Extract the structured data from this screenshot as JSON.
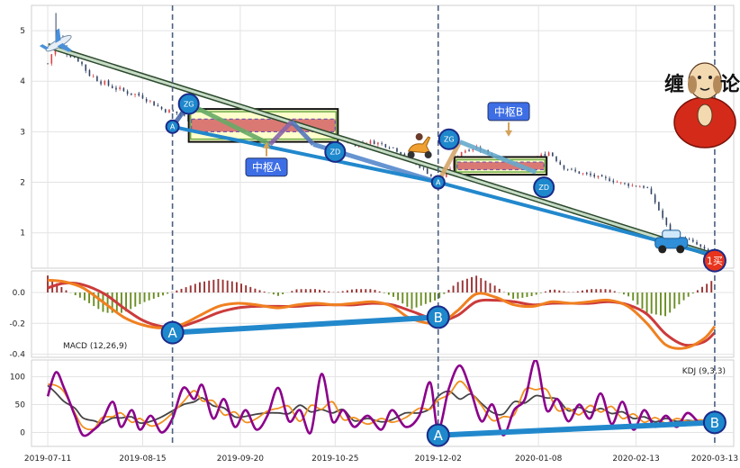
{
  "chart_data": [
    {
      "type": "candlestick",
      "panel": "price",
      "ylim": [
        0.3,
        5.5
      ],
      "yticks": [
        1,
        2,
        3,
        4,
        5
      ],
      "xlim": [
        "2019-07-05",
        "2020-03-20"
      ],
      "xticks": [
        "2019-07-11",
        "2019-08-15",
        "2019-09-20",
        "2019-10-25",
        "2019-12-02",
        "2020-01-08",
        "2020-02-13",
        "2020-03-13"
      ],
      "grid": true,
      "close_path": [
        [
          "2019-07-11",
          4.35
        ],
        [
          "2019-07-15",
          4.9
        ],
        [
          "2019-07-17",
          4.6
        ],
        [
          "2019-07-22",
          4.45
        ],
        [
          "2019-07-26",
          4.15
        ],
        [
          "2019-08-01",
          3.95
        ],
        [
          "2019-08-08",
          3.8
        ],
        [
          "2019-08-15",
          3.7
        ],
        [
          "2019-08-22",
          3.45
        ],
        [
          "2019-08-29",
          3.35
        ],
        [
          "2019-09-02",
          3.2
        ],
        [
          "2019-09-06",
          3.3
        ],
        [
          "2019-09-12",
          3.15
        ],
        [
          "2019-09-19",
          3.1
        ],
        [
          "2019-09-26",
          3.05
        ],
        [
          "2019-10-04",
          3.0
        ],
        [
          "2019-10-11",
          3.1
        ],
        [
          "2019-10-18",
          3.0
        ],
        [
          "2019-10-25",
          2.9
        ],
        [
          "2019-11-01",
          2.75
        ],
        [
          "2019-11-08",
          2.8
        ],
        [
          "2019-11-15",
          2.7
        ],
        [
          "2019-11-22",
          2.45
        ],
        [
          "2019-11-29",
          2.15
        ],
        [
          "2019-12-02",
          2.0
        ],
        [
          "2019-12-06",
          2.25
        ],
        [
          "2019-12-10",
          2.6
        ],
        [
          "2019-12-16",
          2.7
        ],
        [
          "2019-12-23",
          2.5
        ],
        [
          "2019-12-30",
          2.35
        ],
        [
          "2020-01-03",
          2.25
        ],
        [
          "2020-01-08",
          2.5
        ],
        [
          "2020-01-12",
          2.6
        ],
        [
          "2020-01-17",
          2.3
        ],
        [
          "2020-01-22",
          2.2
        ],
        [
          "2020-02-03",
          2.05
        ],
        [
          "2020-02-10",
          1.95
        ],
        [
          "2020-02-17",
          1.9
        ],
        [
          "2020-02-20",
          1.6
        ],
        [
          "2020-02-26",
          0.95
        ],
        [
          "2020-03-04",
          0.85
        ],
        [
          "2020-03-13",
          0.55
        ]
      ],
      "bi_path": [
        [
          "2019-07-11",
          4.7
        ],
        [
          "2019-08-26",
          3.1
        ],
        [
          "2019-09-01",
          3.55
        ],
        [
          "2019-10-01",
          2.75
        ],
        [
          "2019-10-09",
          3.2
        ],
        [
          "2019-10-17",
          2.75
        ],
        [
          "2019-12-02",
          2.0
        ],
        [
          "2019-12-10",
          2.8
        ],
        [
          "2020-01-07",
          2.2
        ],
        [
          "2020-03-13",
          0.55
        ]
      ],
      "trend_line": [
        [
          "2019-07-11",
          4.7
        ],
        [
          "2020-03-13",
          0.55
        ]
      ],
      "segment_line": [
        [
          "2019-08-26",
          3.1
        ],
        [
          "2019-12-02",
          2.0
        ],
        [
          "2020-03-13",
          0.55
        ]
      ],
      "zhongshu": [
        {
          "label": "中枢A",
          "start": "2019-09-01",
          "end": "2019-10-26",
          "low": 2.8,
          "high": 3.45,
          "inner_low": 3.0,
          "inner_high": 3.25
        },
        {
          "label": "中枢B",
          "start": "2019-12-08",
          "end": "2020-01-11",
          "low": 2.15,
          "high": 2.5,
          "inner_low": 2.25,
          "inner_high": 2.4
        }
      ],
      "markers": [
        {
          "label": "A",
          "x": "2019-08-26",
          "y": 3.1
        },
        {
          "label": "ZG",
          "x": "2019-09-01",
          "y": 3.55
        },
        {
          "label": "ZD",
          "x": "2019-10-25",
          "y": 2.6
        },
        {
          "label": "A",
          "x": "2019-12-02",
          "y": 2.0
        },
        {
          "label": "ZG",
          "x": "2019-12-06",
          "y": 2.85
        },
        {
          "label": "ZD",
          "x": "2020-01-10",
          "y": 1.9
        },
        {
          "label": "1买",
          "x": "2020-03-13",
          "y": 0.45
        }
      ],
      "vlines": [
        "2019-08-26",
        "2019-12-02",
        "2020-03-13"
      ],
      "logo_text": [
        "缠",
        "论"
      ]
    },
    {
      "type": "macd",
      "panel": "macd",
      "label": "MACD (12,26,9)",
      "ylim": [
        -0.42,
        0.14
      ],
      "yticks": [
        0.0,
        -0.2,
        -0.4
      ],
      "dif": [
        [
          "2019-07-11",
          0.08
        ],
        [
          "2019-07-17",
          0.07
        ],
        [
          "2019-07-24",
          0.03
        ],
        [
          "2019-08-01",
          -0.07
        ],
        [
          "2019-08-08",
          -0.16
        ],
        [
          "2019-08-15",
          -0.21
        ],
        [
          "2019-08-22",
          -0.23
        ],
        [
          "2019-08-29",
          -0.21
        ],
        [
          "2019-09-05",
          -0.15
        ],
        [
          "2019-09-12",
          -0.09
        ],
        [
          "2019-09-19",
          -0.07
        ],
        [
          "2019-09-26",
          -0.08
        ],
        [
          "2019-10-04",
          -0.1
        ],
        [
          "2019-10-11",
          -0.08
        ],
        [
          "2019-10-18",
          -0.07
        ],
        [
          "2019-10-25",
          -0.08
        ],
        [
          "2019-11-01",
          -0.07
        ],
        [
          "2019-11-08",
          -0.06
        ],
        [
          "2019-11-15",
          -0.09
        ],
        [
          "2019-11-22",
          -0.17
        ],
        [
          "2019-12-02",
          -0.2
        ],
        [
          "2019-12-09",
          -0.12
        ],
        [
          "2019-12-16",
          -0.01
        ],
        [
          "2019-12-23",
          -0.03
        ],
        [
          "2019-12-30",
          -0.08
        ],
        [
          "2020-01-06",
          -0.09
        ],
        [
          "2020-01-13",
          -0.06
        ],
        [
          "2020-01-20",
          -0.07
        ],
        [
          "2020-01-27",
          -0.06
        ],
        [
          "2020-02-03",
          -0.05
        ],
        [
          "2020-02-10",
          -0.09
        ],
        [
          "2020-02-17",
          -0.2
        ],
        [
          "2020-02-24",
          -0.34
        ],
        [
          "2020-03-02",
          -0.36
        ],
        [
          "2020-03-09",
          -0.3
        ],
        [
          "2020-03-13",
          -0.22
        ]
      ],
      "dea": [
        [
          "2019-07-11",
          0.03
        ],
        [
          "2019-07-17",
          0.06
        ],
        [
          "2019-07-24",
          0.05
        ],
        [
          "2019-08-01",
          -0.01
        ],
        [
          "2019-08-08",
          -0.1
        ],
        [
          "2019-08-15",
          -0.18
        ],
        [
          "2019-08-22",
          -0.22
        ],
        [
          "2019-08-29",
          -0.22
        ],
        [
          "2019-09-05",
          -0.18
        ],
        [
          "2019-09-12",
          -0.13
        ],
        [
          "2019-09-19",
          -0.1
        ],
        [
          "2019-09-26",
          -0.09
        ],
        [
          "2019-10-04",
          -0.09
        ],
        [
          "2019-10-11",
          -0.09
        ],
        [
          "2019-10-18",
          -0.08
        ],
        [
          "2019-10-25",
          -0.08
        ],
        [
          "2019-11-01",
          -0.08
        ],
        [
          "2019-11-08",
          -0.07
        ],
        [
          "2019-11-15",
          -0.08
        ],
        [
          "2019-11-22",
          -0.12
        ],
        [
          "2019-12-02",
          -0.18
        ],
        [
          "2019-12-09",
          -0.15
        ],
        [
          "2019-12-16",
          -0.06
        ],
        [
          "2019-12-23",
          -0.05
        ],
        [
          "2019-12-30",
          -0.06
        ],
        [
          "2020-01-06",
          -0.08
        ],
        [
          "2020-01-13",
          -0.07
        ],
        [
          "2020-01-20",
          -0.07
        ],
        [
          "2020-01-27",
          -0.07
        ],
        [
          "2020-02-03",
          -0.06
        ],
        [
          "2020-02-10",
          -0.08
        ],
        [
          "2020-02-17",
          -0.14
        ],
        [
          "2020-02-24",
          -0.27
        ],
        [
          "2020-03-02",
          -0.34
        ],
        [
          "2020-03-09",
          -0.32
        ],
        [
          "2020-03-13",
          -0.26
        ]
      ],
      "segment_line": [
        [
          "2019-08-26",
          -0.26
        ],
        [
          "2019-12-02",
          -0.16
        ]
      ],
      "markers": [
        {
          "label": "A",
          "x": "2019-08-26",
          "y": -0.26
        },
        {
          "label": "B",
          "x": "2019-12-02",
          "y": -0.16
        }
      ]
    },
    {
      "type": "kdj",
      "panel": "kdj",
      "label": "KDJ (9,3,3)",
      "ylim": [
        -25,
        130
      ],
      "yticks": [
        100,
        50,
        0
      ],
      "j": [
        [
          "2019-07-11",
          65
        ],
        [
          "2019-07-14",
          108
        ],
        [
          "2019-07-17",
          80
        ],
        [
          "2019-07-21",
          30
        ],
        [
          "2019-07-24",
          -5
        ],
        [
          "2019-07-28",
          5
        ],
        [
          "2019-07-31",
          20
        ],
        [
          "2019-08-04",
          55
        ],
        [
          "2019-08-07",
          10
        ],
        [
          "2019-08-11",
          40
        ],
        [
          "2019-08-14",
          5
        ],
        [
          "2019-08-18",
          30
        ],
        [
          "2019-08-22",
          0
        ],
        [
          "2019-08-26",
          25
        ],
        [
          "2019-08-30",
          80
        ],
        [
          "2019-09-03",
          60
        ],
        [
          "2019-09-06",
          85
        ],
        [
          "2019-09-10",
          25
        ],
        [
          "2019-09-14",
          60
        ],
        [
          "2019-09-18",
          10
        ],
        [
          "2019-09-22",
          40
        ],
        [
          "2019-09-26",
          5
        ],
        [
          "2019-09-30",
          30
        ],
        [
          "2019-10-04",
          80
        ],
        [
          "2019-10-08",
          20
        ],
        [
          "2019-10-12",
          40
        ],
        [
          "2019-10-16",
          0
        ],
        [
          "2019-10-20",
          105
        ],
        [
          "2019-10-24",
          20
        ],
        [
          "2019-10-28",
          40
        ],
        [
          "2019-11-01",
          10
        ],
        [
          "2019-11-06",
          30
        ],
        [
          "2019-11-11",
          5
        ],
        [
          "2019-11-15",
          40
        ],
        [
          "2019-11-20",
          10
        ],
        [
          "2019-11-25",
          30
        ],
        [
          "2019-11-29",
          90
        ],
        [
          "2019-12-02",
          5
        ],
        [
          "2019-12-06",
          80
        ],
        [
          "2019-12-10",
          120
        ],
        [
          "2019-12-14",
          75
        ],
        [
          "2019-12-18",
          20
        ],
        [
          "2019-12-22",
          50
        ],
        [
          "2019-12-26",
          -5
        ],
        [
          "2019-12-30",
          40
        ],
        [
          "2020-01-03",
          60
        ],
        [
          "2020-01-07",
          130
        ],
        [
          "2020-01-11",
          40
        ],
        [
          "2020-01-15",
          60
        ],
        [
          "2020-01-19",
          20
        ],
        [
          "2020-01-23",
          50
        ],
        [
          "2020-01-27",
          25
        ],
        [
          "2020-01-31",
          70
        ],
        [
          "2020-02-04",
          15
        ],
        [
          "2020-02-08",
          55
        ],
        [
          "2020-02-12",
          5
        ],
        [
          "2020-02-16",
          40
        ],
        [
          "2020-02-20",
          10
        ],
        [
          "2020-02-24",
          30
        ],
        [
          "2020-02-28",
          10
        ],
        [
          "2020-03-03",
          35
        ],
        [
          "2020-03-08",
          15
        ],
        [
          "2020-03-13",
          18
        ]
      ],
      "segment_line": [
        [
          "2019-12-02",
          -5
        ],
        [
          "2020-03-13",
          18
        ]
      ],
      "markers": [
        {
          "label": "A",
          "x": "2019-12-02",
          "y": -5
        },
        {
          "label": "B",
          "x": "2020-03-13",
          "y": 18
        }
      ]
    }
  ]
}
